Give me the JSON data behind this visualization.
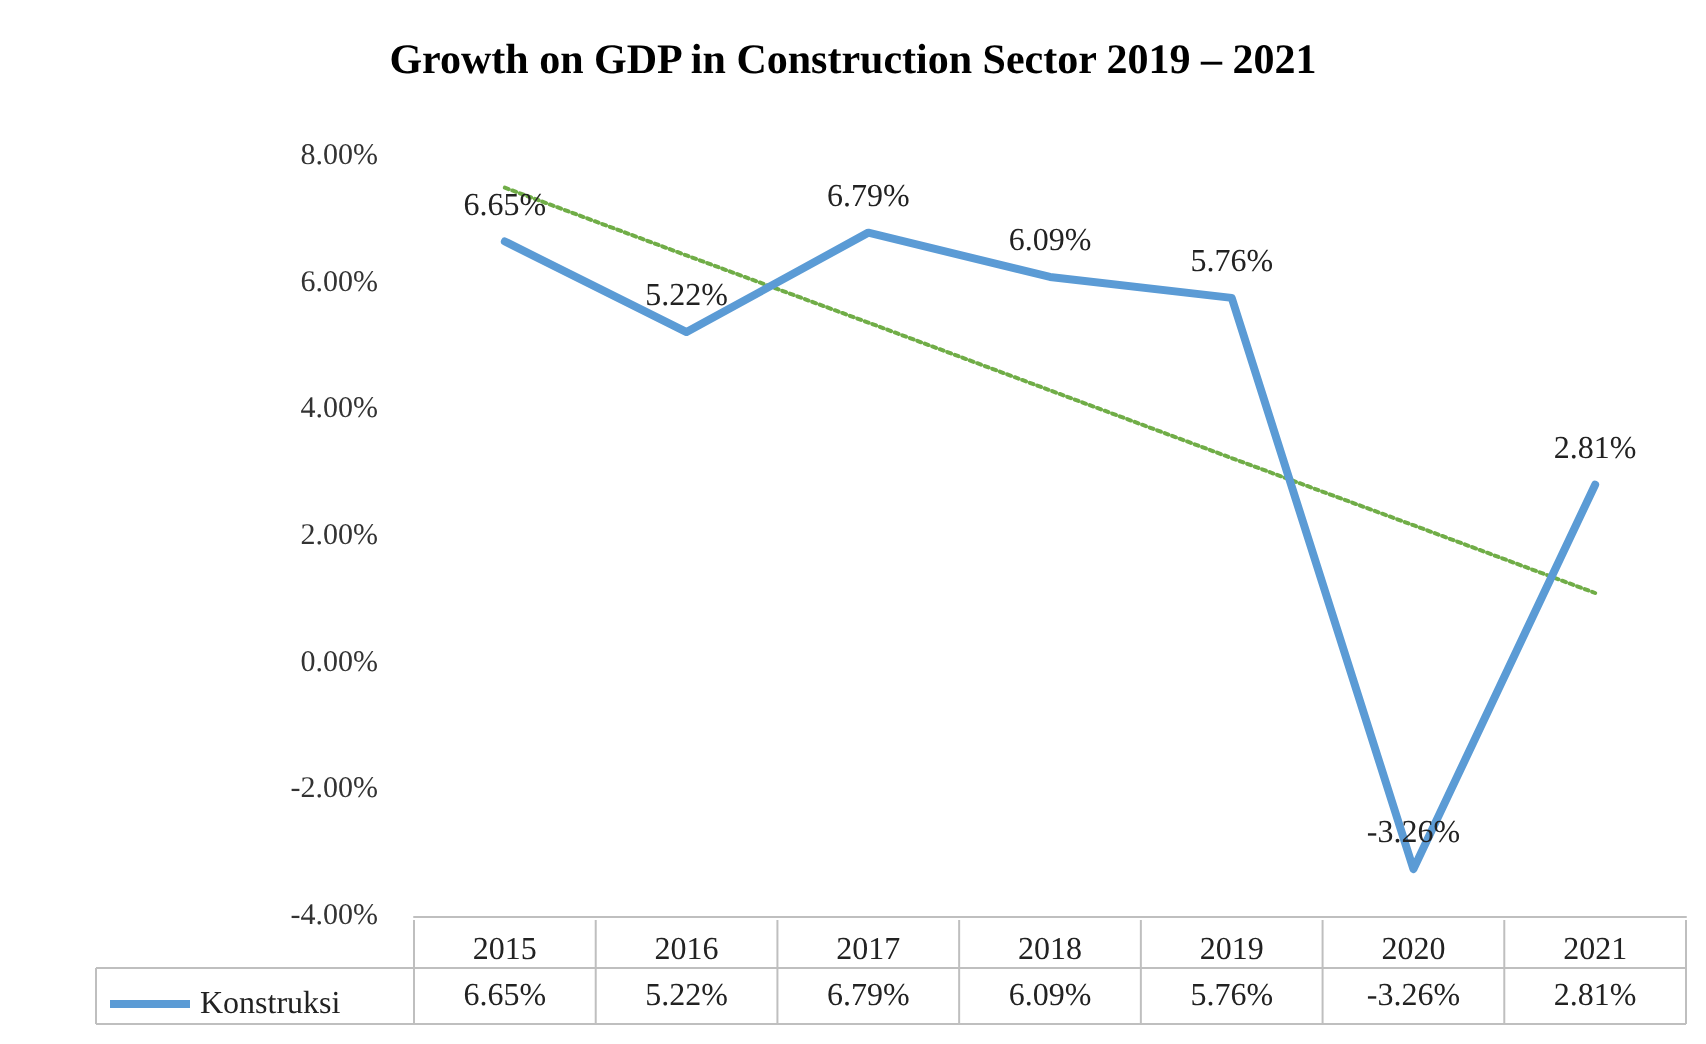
{
  "chart_data": {
    "type": "line",
    "title": "Growth on GDP in Construction Sector 2019 – 2021",
    "categories": [
      "2015",
      "2016",
      "2017",
      "2018",
      "2019",
      "2020",
      "2021"
    ],
    "series": [
      {
        "name": "Konstruksi",
        "color": "#5b9bd5",
        "values": [
          6.65,
          5.22,
          6.79,
          6.09,
          5.76,
          -3.26,
          2.81
        ],
        "value_labels": [
          "6.65%",
          "5.22%",
          "6.79%",
          "6.09%",
          "5.76%",
          "-3.26%",
          "2.81%"
        ]
      },
      {
        "type": "line",
        "color": "#70ad47",
        "line_style": "dotted",
        "values": [
          7.5,
          6.43,
          5.37,
          4.3,
          3.23,
          2.17,
          1.1
        ]
      }
    ],
    "ylim": [
      -4,
      8
    ],
    "yticks": [
      {
        "value": -4,
        "label": "-4.00%"
      },
      {
        "value": -2,
        "label": "-2.00%"
      },
      {
        "value": 0,
        "label": "0.00%"
      },
      {
        "value": 2,
        "label": "2.00%"
      },
      {
        "value": 4,
        "label": "4.00%"
      },
      {
        "value": 6,
        "label": "6.00%"
      },
      {
        "value": 8,
        "label": "8.00%"
      }
    ],
    "grid": false,
    "legend": "bottom",
    "marker": "none",
    "line_style": "solid"
  }
}
